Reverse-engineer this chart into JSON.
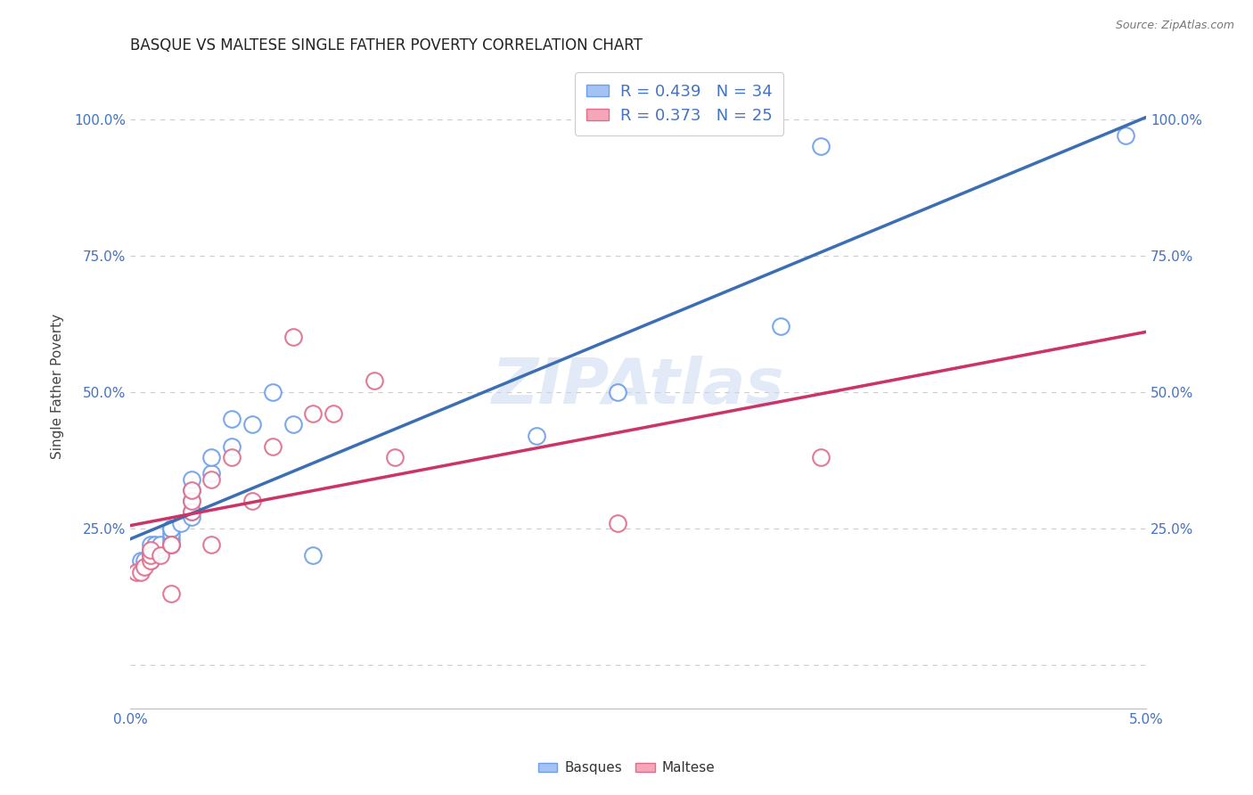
{
  "title": "BASQUE VS MALTESE SINGLE FATHER POVERTY CORRELATION CHART",
  "source": "Source: ZipAtlas.com",
  "ylabel": "Single Father Poverty",
  "xlim": [
    0.0,
    0.05
  ],
  "ylim": [
    -0.08,
    1.1
  ],
  "xticks": [
    0.0,
    0.01,
    0.02,
    0.03,
    0.04,
    0.05
  ],
  "xticklabels": [
    "0.0%",
    "",
    "",
    "",
    "",
    "5.0%"
  ],
  "yticks": [
    0.0,
    0.25,
    0.5,
    0.75,
    1.0
  ],
  "yticklabels": [
    "",
    "25.0%",
    "50.0%",
    "75.0%",
    "100.0%"
  ],
  "basques_R": 0.439,
  "basques_N": 34,
  "maltese_R": 0.373,
  "maltese_N": 25,
  "blue_color": "#a4c2f4",
  "pink_color": "#f4a7b9",
  "blue_edge_color": "#6d9eeb",
  "pink_edge_color": "#e06c8a",
  "blue_line_color": "#3c6eb4",
  "pink_line_color": "#cc3366",
  "watermark": "ZIPAtlas",
  "basques_x": [
    0.0005,
    0.0005,
    0.0007,
    0.001,
    0.001,
    0.001,
    0.001,
    0.0012,
    0.0015,
    0.0015,
    0.002,
    0.002,
    0.002,
    0.002,
    0.002,
    0.0025,
    0.003,
    0.003,
    0.003,
    0.003,
    0.003,
    0.004,
    0.004,
    0.005,
    0.005,
    0.006,
    0.007,
    0.008,
    0.009,
    0.02,
    0.024,
    0.032,
    0.034,
    0.049
  ],
  "basques_y": [
    0.18,
    0.19,
    0.19,
    0.19,
    0.2,
    0.21,
    0.22,
    0.22,
    0.21,
    0.22,
    0.22,
    0.23,
    0.24,
    0.25,
    0.25,
    0.26,
    0.27,
    0.28,
    0.3,
    0.32,
    0.34,
    0.35,
    0.38,
    0.4,
    0.45,
    0.44,
    0.5,
    0.44,
    0.2,
    0.42,
    0.5,
    0.62,
    0.95,
    0.97
  ],
  "maltese_x": [
    0.0003,
    0.0005,
    0.0007,
    0.001,
    0.001,
    0.001,
    0.0015,
    0.002,
    0.002,
    0.002,
    0.003,
    0.003,
    0.003,
    0.004,
    0.004,
    0.005,
    0.006,
    0.007,
    0.008,
    0.009,
    0.01,
    0.012,
    0.013,
    0.024,
    0.034
  ],
  "maltese_y": [
    0.17,
    0.17,
    0.18,
    0.19,
    0.2,
    0.21,
    0.2,
    0.22,
    0.22,
    0.13,
    0.28,
    0.3,
    0.32,
    0.22,
    0.34,
    0.38,
    0.3,
    0.4,
    0.6,
    0.46,
    0.46,
    0.52,
    0.38,
    0.26,
    0.38
  ]
}
